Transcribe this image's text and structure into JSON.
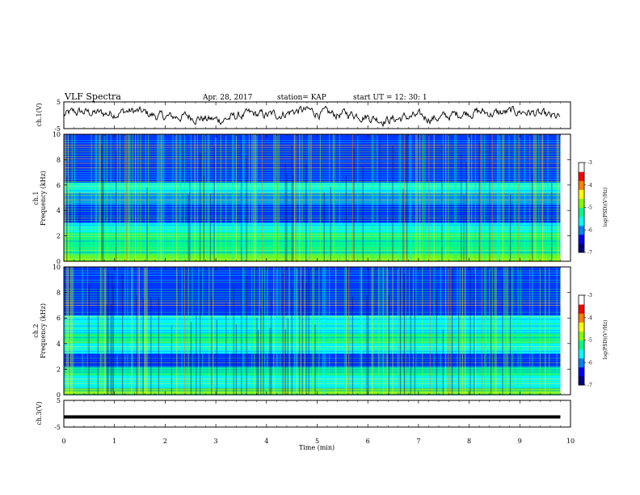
{
  "chart_data": {
    "type": "heatmap",
    "title": "VLF Spectra",
    "date": "Apr. 28, 2017",
    "station": "station= KAP",
    "start": "start  UT =   12: 30: 1",
    "xlabel": "Time  (min)",
    "x_ticks": [
      "0",
      "1",
      "2",
      "3",
      "4",
      "5",
      "6",
      "7",
      "8",
      "9",
      "10"
    ],
    "xlim": [
      0,
      10
    ],
    "panels": [
      {
        "id": "ch1_wave",
        "kind": "waveform",
        "ylabel": "ch.1(V)",
        "ylim": [
          -5,
          5
        ],
        "y_ticks": [
          "5",
          "-5"
        ]
      },
      {
        "id": "ch1_spec",
        "kind": "spectrogram",
        "ylabel_top": "ch.1",
        "ylabel": "Frequency  (kHz)",
        "ylim": [
          0,
          10
        ],
        "y_ticks": [
          "0",
          "2",
          "4",
          "6",
          "8",
          "10"
        ],
        "colorbar": {
          "label": "log(PSD)(V²/Hz)",
          "range": [
            -7,
            -3
          ],
          "ticks": [
            "-3",
            "-4",
            "-5",
            "-6",
            "-7"
          ]
        }
      },
      {
        "id": "ch2_spec",
        "kind": "spectrogram",
        "ylabel_top": "ch.2",
        "ylabel": "Frequency  (kHz)",
        "ylim": [
          0,
          10
        ],
        "y_ticks": [
          "0",
          "2",
          "4",
          "6",
          "8",
          "10"
        ],
        "colorbar": {
          "label": "log(PSD)(V²/Hz)",
          "range": [
            -7,
            -3
          ],
          "ticks": [
            "-3",
            "-4",
            "-5",
            "-6",
            "-7"
          ]
        }
      },
      {
        "id": "ch3_wave",
        "kind": "waveform",
        "ylabel": "ch.3(V)",
        "ylim": [
          -5,
          5
        ],
        "y_ticks": [
          "5",
          "-5"
        ],
        "level": -1.2
      }
    ],
    "data_end_min": 9.8,
    "colormap": [
      "#000080",
      "#0000ff",
      "#0080ff",
      "#00ffff",
      "#00ff80",
      "#80ff00",
      "#ffff00",
      "#ff8000",
      "#ff0000",
      "#ffffff"
    ]
  }
}
